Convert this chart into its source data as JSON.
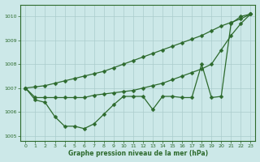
{
  "x": [
    0,
    1,
    2,
    3,
    4,
    5,
    6,
    7,
    8,
    9,
    10,
    11,
    12,
    13,
    14,
    15,
    16,
    17,
    18,
    19,
    20,
    21,
    22,
    23
  ],
  "line_wavy": [
    1007.0,
    1006.5,
    1006.4,
    1005.8,
    1005.4,
    1005.4,
    1005.3,
    1005.5,
    1005.9,
    1006.3,
    1006.65,
    1006.65,
    1006.65,
    1006.1,
    1006.65,
    1006.65,
    1006.6,
    1006.6,
    1008.0,
    1006.6,
    1006.65,
    1009.7,
    1010.0,
    1010.1
  ],
  "line_lower": [
    1007.0,
    1006.6,
    1006.6,
    1006.6,
    1006.6,
    1006.6,
    1006.6,
    1006.7,
    1006.75,
    1006.8,
    1006.85,
    1006.9,
    1007.0,
    1007.1,
    1007.2,
    1007.35,
    1007.5,
    1007.65,
    1007.8,
    1008.0,
    1008.6,
    1009.2,
    1009.7,
    1010.1
  ],
  "line_upper": [
    1007.0,
    1007.05,
    1007.1,
    1007.2,
    1007.3,
    1007.4,
    1007.5,
    1007.6,
    1007.7,
    1007.85,
    1008.0,
    1008.15,
    1008.3,
    1008.45,
    1008.6,
    1008.75,
    1008.9,
    1009.05,
    1009.2,
    1009.4,
    1009.6,
    1009.75,
    1009.9,
    1010.1
  ],
  "ylim": [
    1004.8,
    1010.5
  ],
  "yticks": [
    1005,
    1006,
    1007,
    1008,
    1009,
    1010
  ],
  "xticks": [
    0,
    1,
    2,
    3,
    4,
    5,
    6,
    7,
    8,
    9,
    10,
    11,
    12,
    13,
    14,
    15,
    16,
    17,
    18,
    19,
    20,
    21,
    22,
    23
  ],
  "xlabel": "Graphe pression niveau de la mer (hPa)",
  "line_color": "#2d6a2d",
  "bg_color": "#cce8e8",
  "grid_color": "#aacccc",
  "tick_label_color": "#2d6a2d",
  "xlabel_color": "#2d6a2d",
  "marker": "D",
  "markersize": 2.5,
  "linewidth": 0.9
}
